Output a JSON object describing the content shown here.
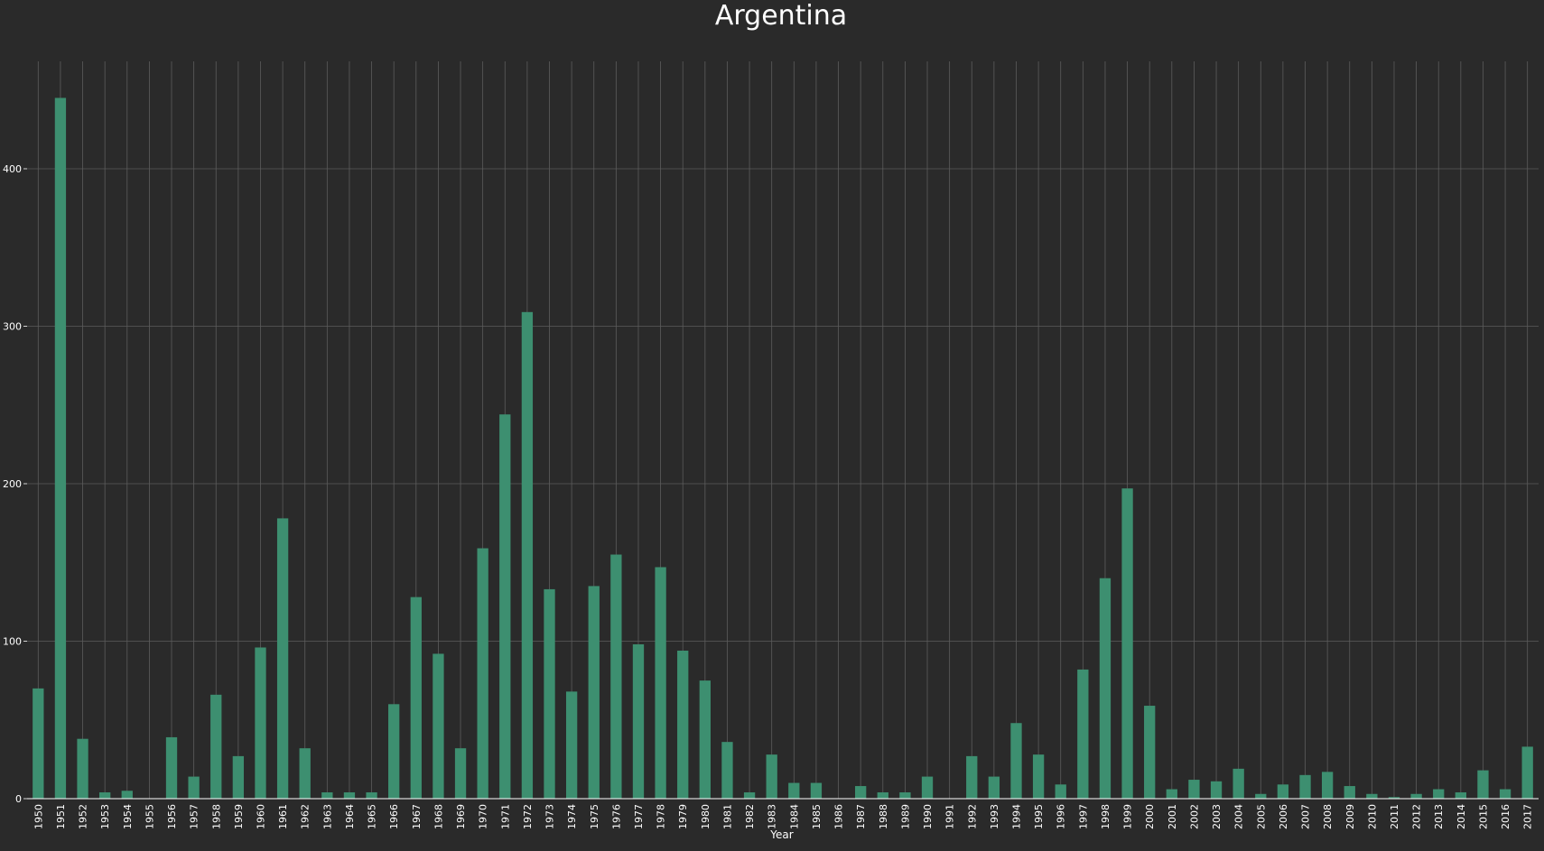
{
  "chart_data": {
    "type": "bar",
    "title": "Argentina",
    "xlabel": "Year",
    "ylabel": "",
    "ylim": [
      0,
      467
    ],
    "yticks": [
      0,
      100,
      200,
      300,
      400
    ],
    "grid": true,
    "bar_color": "#3d8f70",
    "background": "#2a2a2a",
    "categories": [
      "1950",
      "1951",
      "1952",
      "1953",
      "1954",
      "1955",
      "1956",
      "1957",
      "1958",
      "1959",
      "1960",
      "1961",
      "1962",
      "1963",
      "1964",
      "1965",
      "1966",
      "1967",
      "1968",
      "1969",
      "1970",
      "1971",
      "1972",
      "1973",
      "1974",
      "1975",
      "1976",
      "1977",
      "1978",
      "1979",
      "1980",
      "1981",
      "1982",
      "1983",
      "1984",
      "1985",
      "1986",
      "1987",
      "1988",
      "1989",
      "1990",
      "1991",
      "1992",
      "1993",
      "1994",
      "1995",
      "1996",
      "1997",
      "1998",
      "1999",
      "2000",
      "2001",
      "2002",
      "2003",
      "2004",
      "2005",
      "2006",
      "2007",
      "2008",
      "2009",
      "2010",
      "2011",
      "2012",
      "2013",
      "2014",
      "2015",
      "2016",
      "2017"
    ],
    "values": [
      70,
      445,
      38,
      4,
      5,
      0,
      39,
      14,
      66,
      27,
      96,
      178,
      32,
      4,
      4,
      4,
      60,
      128,
      92,
      32,
      159,
      244,
      309,
      133,
      68,
      135,
      155,
      98,
      147,
      94,
      75,
      36,
      4,
      28,
      10,
      10,
      0,
      8,
      4,
      4,
      14,
      0,
      27,
      14,
      48,
      28,
      9,
      82,
      140,
      197,
      59,
      6,
      12,
      11,
      19,
      3,
      9,
      15,
      17,
      8,
      3,
      1,
      3,
      6,
      4,
      18,
      6,
      33
    ]
  }
}
